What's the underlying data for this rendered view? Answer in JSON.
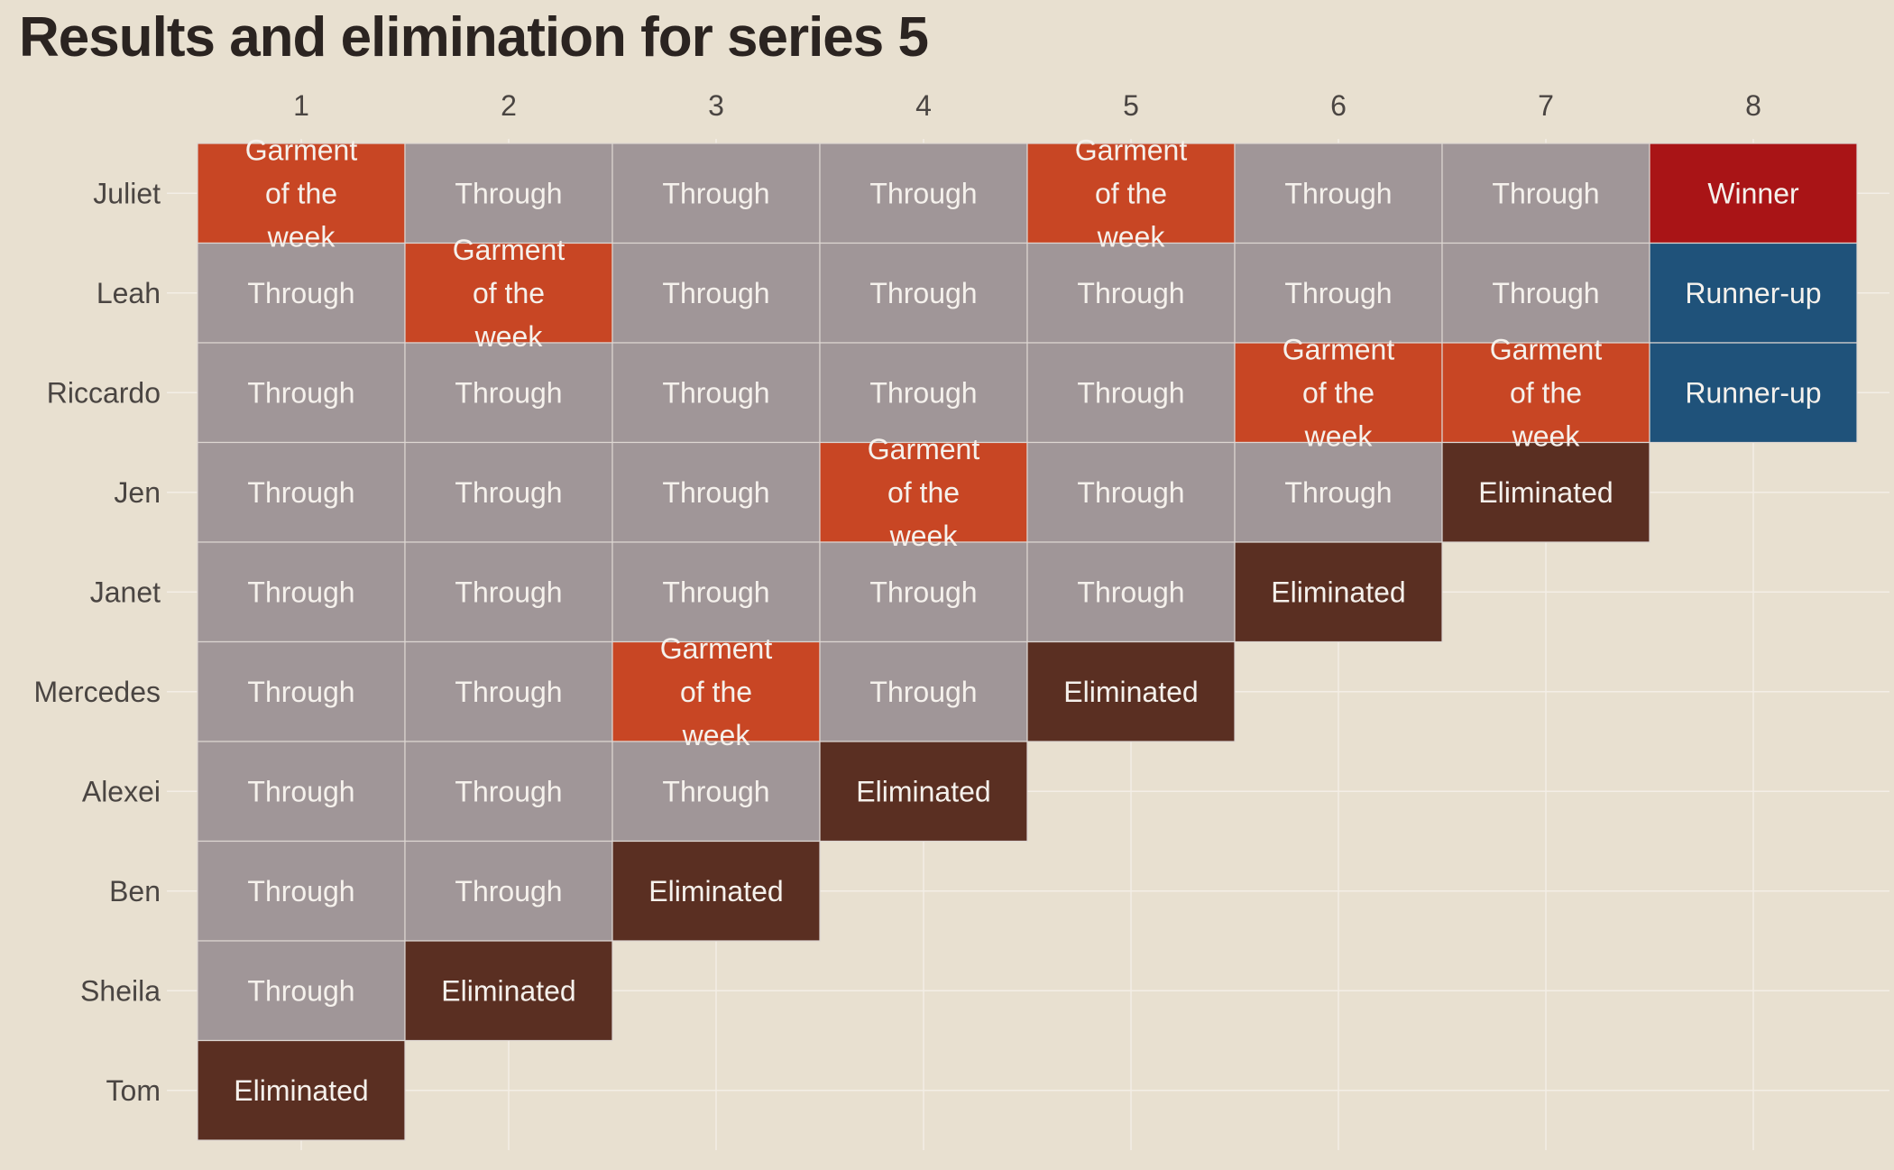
{
  "chart_data": {
    "type": "heatmap",
    "title": "Results and elimination for series 5",
    "columns": [
      "1",
      "2",
      "3",
      "4",
      "5",
      "6",
      "7",
      "8"
    ],
    "rows": [
      "Juliet",
      "Leah",
      "Riccardo",
      "Jen",
      "Janet",
      "Mercedes",
      "Alexei",
      "Ben",
      "Sheila",
      "Tom"
    ],
    "values": [
      [
        "Garment of the week",
        "Through",
        "Through",
        "Through",
        "Garment of the week",
        "Through",
        "Through",
        "Winner"
      ],
      [
        "Through",
        "Garment of the week",
        "Through",
        "Through",
        "Through",
        "Through",
        "Through",
        "Runner-up"
      ],
      [
        "Through",
        "Through",
        "Through",
        "Through",
        "Through",
        "Garment of the week",
        "Garment of the week",
        "Runner-up"
      ],
      [
        "Through",
        "Through",
        "Through",
        "Garment of the week",
        "Through",
        "Through",
        "Eliminated",
        null
      ],
      [
        "Through",
        "Through",
        "Through",
        "Through",
        "Through",
        "Eliminated",
        null,
        null
      ],
      [
        "Through",
        "Through",
        "Garment of the week",
        "Through",
        "Eliminated",
        null,
        null,
        null
      ],
      [
        "Through",
        "Through",
        "Through",
        "Eliminated",
        null,
        null,
        null,
        null
      ],
      [
        "Through",
        "Through",
        "Eliminated",
        null,
        null,
        null,
        null,
        null
      ],
      [
        "Through",
        "Eliminated",
        null,
        null,
        null,
        null,
        null,
        null
      ],
      [
        "Eliminated",
        null,
        null,
        null,
        null,
        null,
        null,
        null
      ]
    ],
    "category_colors": {
      "Through": "#a09698",
      "Garment of the week": "#c84624",
      "Eliminated": "#5a2f22",
      "Winner": "#a91416",
      "Runner-up": "#1f527a"
    },
    "grid": true,
    "legend": "none"
  }
}
